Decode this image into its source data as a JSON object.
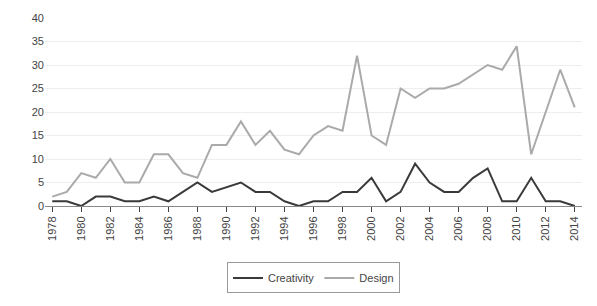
{
  "chart_data": {
    "type": "line",
    "x": [
      1978,
      1979,
      1980,
      1981,
      1982,
      1983,
      1984,
      1985,
      1986,
      1987,
      1988,
      1989,
      1990,
      1991,
      1992,
      1993,
      1994,
      1995,
      1996,
      1997,
      1998,
      1999,
      2000,
      2001,
      2002,
      2003,
      2004,
      2005,
      2006,
      2007,
      2008,
      2009,
      2010,
      2011,
      2012,
      2013,
      2014
    ],
    "series": [
      {
        "name": "Creativity",
        "color": "#3a3a3a",
        "values": [
          1,
          1,
          0,
          2,
          2,
          1,
          1,
          2,
          1,
          3,
          5,
          3,
          4,
          5,
          3,
          3,
          1,
          0,
          1,
          1,
          3,
          3,
          6,
          1,
          3,
          9,
          5,
          3,
          3,
          6,
          8,
          1,
          1,
          6,
          1,
          1,
          0
        ]
      },
      {
        "name": "Design",
        "color": "#aaaaaa",
        "values": [
          2,
          3,
          7,
          6,
          10,
          5,
          5,
          11,
          11,
          7,
          6,
          13,
          13,
          18,
          13,
          16,
          12,
          11,
          15,
          17,
          16,
          32,
          15,
          13,
          25,
          23,
          25,
          25,
          26,
          28,
          30,
          29,
          34,
          11,
          20,
          29,
          21
        ]
      }
    ],
    "xlim": [
      1977.5,
      2014.5
    ],
    "xticks": [
      1978,
      1980,
      1982,
      1984,
      1986,
      1988,
      1990,
      1992,
      1994,
      1996,
      1998,
      2000,
      2002,
      2004,
      2006,
      2008,
      2010,
      2012,
      2014
    ],
    "ylim": [
      0,
      40
    ],
    "yticks": [
      0,
      5,
      10,
      15,
      20,
      25,
      30,
      35,
      40
    ],
    "grid": "y",
    "legend": "bottom"
  }
}
